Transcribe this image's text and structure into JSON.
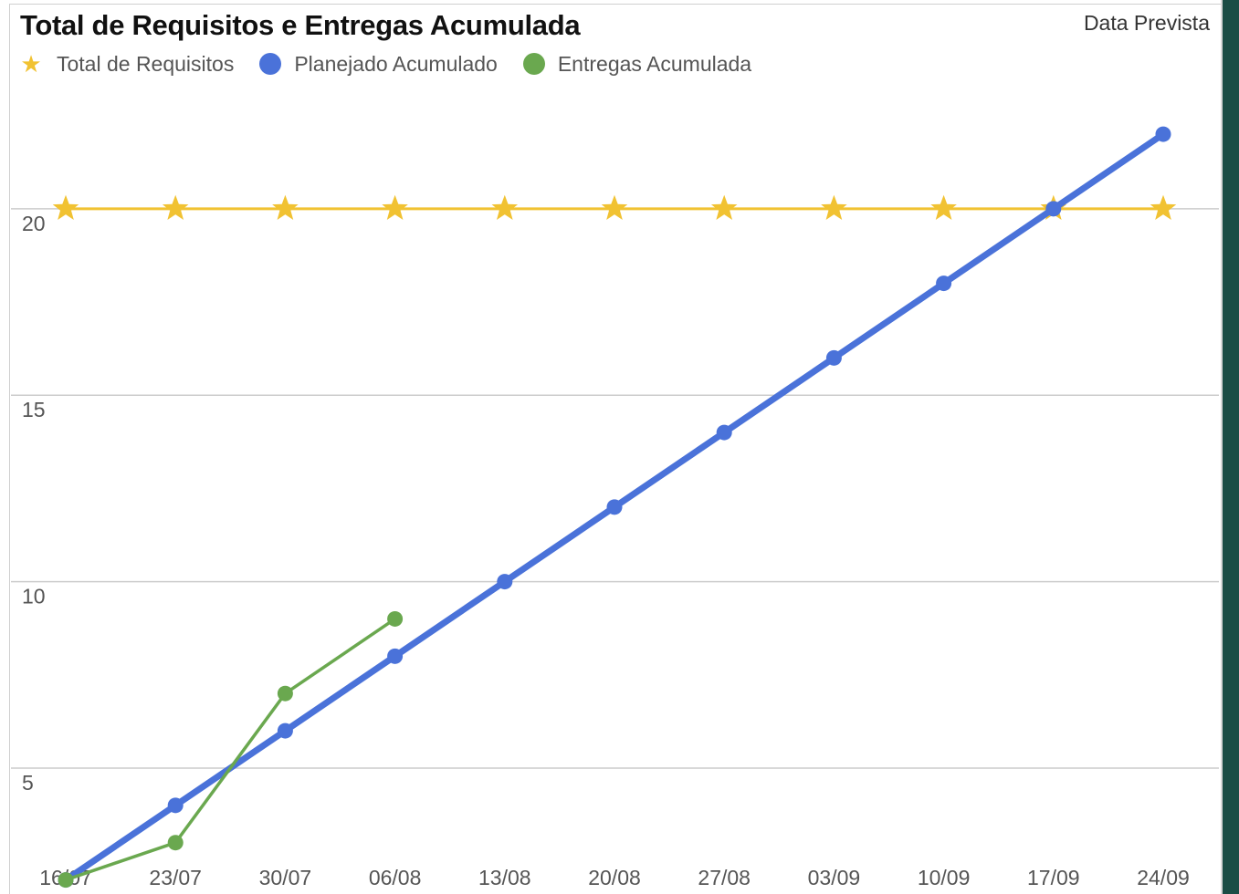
{
  "chart_data": {
    "type": "line",
    "title": "Total de Requisitos e Entregas Acumulada",
    "subtitle": "Data Prevista",
    "categories": [
      "16/07",
      "23/07",
      "30/07",
      "06/08",
      "13/08",
      "20/08",
      "27/08",
      "03/09",
      "10/09",
      "17/09",
      "24/09"
    ],
    "yticks": [
      5,
      10,
      15,
      20
    ],
    "ylim": [
      1.5,
      25.5
    ],
    "grid": true,
    "legend_position": "top-left",
    "series": [
      {
        "name": "Total de Requisitos",
        "marker": "star",
        "color": "#f1c232",
        "values": [
          20,
          20,
          20,
          20,
          20,
          20,
          20,
          20,
          20,
          20,
          20
        ]
      },
      {
        "name": "Planejado Acumulado",
        "marker": "circle",
        "color": "#4a72d9",
        "values": [
          2,
          4,
          6,
          8,
          10,
          12,
          14,
          16,
          18,
          20,
          22
        ]
      },
      {
        "name": "Entregas Acumulada",
        "marker": "circle",
        "color": "#6aa84f",
        "values": [
          2,
          3,
          7,
          9,
          null,
          null,
          null,
          null,
          null,
          null,
          null
        ]
      }
    ]
  }
}
